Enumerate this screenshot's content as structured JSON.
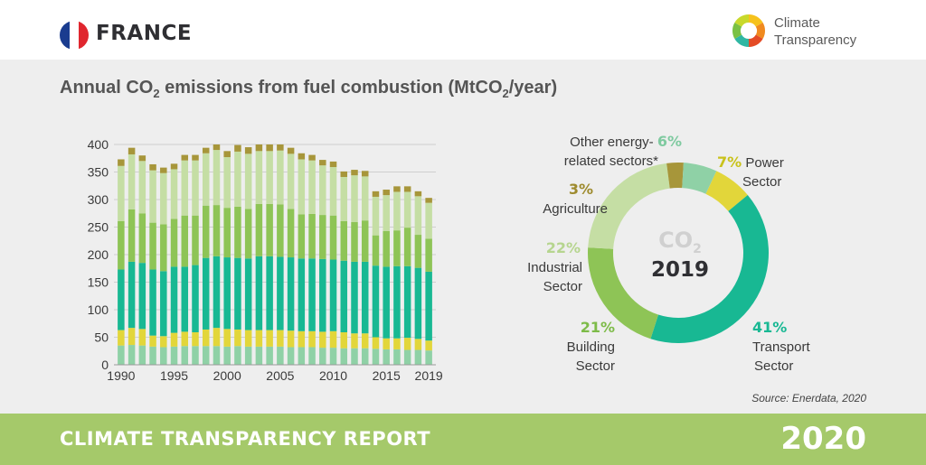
{
  "header": {
    "country": "FRANCE",
    "flag_colors": [
      "#1a3c8f",
      "#ffffff",
      "#e0262e"
    ],
    "logo_name": "climate-transparency-logo",
    "logo_line1": "Climate",
    "logo_line2": "Transparency"
  },
  "title": {
    "pre": "Annual CO",
    "sub1": "2",
    "mid": " emissions from fuel combustion (MtCO",
    "sub2": "2",
    "post": "/year)"
  },
  "chart_data": [
    {
      "type": "bar",
      "stacked": true,
      "years": [
        1990,
        1991,
        1992,
        1993,
        1994,
        1995,
        1996,
        1997,
        1998,
        1999,
        2000,
        2001,
        2002,
        2003,
        2004,
        2005,
        2006,
        2007,
        2008,
        2009,
        2010,
        2011,
        2012,
        2013,
        2014,
        2015,
        2016,
        2017,
        2018,
        2019
      ],
      "x_tick_labels": [
        "1990",
        "1995",
        "2000",
        "2005",
        "2010",
        "2015",
        "2019"
      ],
      "y_tick_labels": [
        "0",
        "50",
        "100",
        "150",
        "200",
        "250",
        "300",
        "350",
        "400"
      ],
      "ylim": [
        0,
        400
      ],
      "grid": true,
      "series": [
        {
          "color": "#8fd1a6",
          "values": [
            35,
            36,
            35,
            33,
            32,
            33,
            34,
            34,
            34,
            34,
            33,
            34,
            33,
            33,
            33,
            33,
            32,
            32,
            32,
            31,
            31,
            30,
            30,
            30,
            29,
            28,
            28,
            27,
            27,
            26
          ]
        },
        {
          "color": "#e2d63a",
          "values": [
            28,
            31,
            30,
            20,
            20,
            25,
            26,
            25,
            30,
            33,
            32,
            30,
            30,
            30,
            30,
            30,
            30,
            29,
            29,
            29,
            30,
            29,
            27,
            27,
            21,
            20,
            20,
            22,
            20,
            18
          ]
        },
        {
          "color": "#18b893",
          "values": [
            110,
            120,
            120,
            120,
            118,
            120,
            118,
            122,
            130,
            130,
            130,
            130,
            130,
            134,
            134,
            133,
            133,
            132,
            132,
            132,
            130,
            130,
            130,
            130,
            130,
            130,
            131,
            130,
            129,
            125
          ]
        },
        {
          "color": "#8ec456",
          "values": [
            88,
            95,
            90,
            85,
            85,
            87,
            93,
            90,
            95,
            93,
            90,
            93,
            90,
            95,
            95,
            95,
            88,
            80,
            81,
            80,
            80,
            72,
            72,
            75,
            55,
            65,
            65,
            70,
            60,
            60
          ]
        },
        {
          "color": "#c5dea4",
          "values": [
            100,
            100,
            95,
            95,
            93,
            90,
            100,
            100,
            95,
            100,
            92,
            100,
            100,
            96,
            96,
            98,
            100,
            100,
            97,
            90,
            88,
            80,
            85,
            80,
            70,
            65,
            70,
            65,
            70,
            65
          ]
        },
        {
          "color": "#a7963a",
          "values": [
            12,
            12,
            10,
            11,
            10,
            10,
            10,
            10,
            10,
            10,
            11,
            12,
            12,
            12,
            12,
            11,
            11,
            11,
            10,
            10,
            10,
            10,
            10,
            10,
            10,
            10,
            10,
            10,
            9,
            9
          ]
        }
      ]
    },
    {
      "type": "pie",
      "donut": true,
      "center_label": "CO",
      "center_sub": "2",
      "center_year": "2019",
      "slices": [
        {
          "name": "Power Sector",
          "value": 7,
          "label": "7%",
          "color": "#e2d63a"
        },
        {
          "name": "Transport Sector",
          "value": 41,
          "label": "41%",
          "color": "#18b893"
        },
        {
          "name": "Building Sector",
          "value": 21,
          "label": "21%",
          "color": "#8ec456"
        },
        {
          "name": "Industrial Sector",
          "value": 22,
          "label": "22%",
          "color": "#c5dea4"
        },
        {
          "name": "Agriculture",
          "value": 3,
          "label": "3%",
          "color": "#a7963a"
        },
        {
          "name": "Other energy-related sectors*",
          "value": 6,
          "label": "6%",
          "color": "#8fd1a6"
        }
      ],
      "labels": {
        "power": {
          "pct": "7%",
          "line1": "Power",
          "line2": "Sector",
          "color": "#c9c21b"
        },
        "transport": {
          "pct": "41%",
          "line1": "Transport",
          "line2": "Sector",
          "color": "#18b893"
        },
        "building": {
          "pct": "21%",
          "line1": "Building",
          "line2": "Sector",
          "color": "#7dbb48"
        },
        "industrial": {
          "pct": "22%",
          "line1": "Industrial",
          "line2": "Sector",
          "color": "#b6d58f"
        },
        "agriculture": {
          "pct": "3%",
          "line1": "Agriculture",
          "color": "#9e8b2e"
        },
        "other": {
          "pct": "6%",
          "line1": "Other energy-",
          "line2": "related sectors*",
          "color": "#7fcaa0"
        }
      }
    }
  ],
  "source": "Source: Enerdata, 2020",
  "footer": {
    "title": "CLIMATE TRANSPARENCY REPORT",
    "year": "2020"
  }
}
